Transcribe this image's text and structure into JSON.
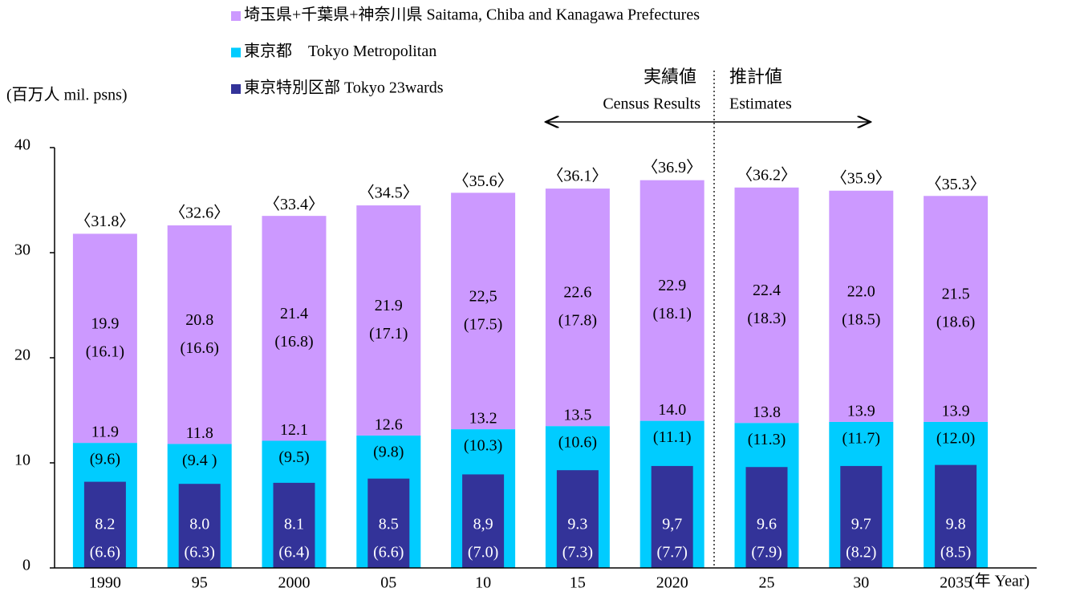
{
  "chart_data": {
    "type": "bar",
    "y_label": "(百万人 mil. psns)",
    "x_label": "(年 Year)",
    "categories": [
      "1990",
      "95",
      "2000",
      "05",
      "10",
      "15",
      "2020",
      "25",
      "30",
      "2035"
    ],
    "ylim": [
      0,
      40
    ],
    "yticks": [
      0,
      10,
      20,
      30,
      40
    ],
    "series": [
      {
        "name": "東京都　Tokyo Metropolitan",
        "color": "#00ccff",
        "stack": true,
        "values": [
          11.9,
          11.8,
          12.1,
          12.6,
          13.2,
          13.5,
          14.0,
          13.8,
          13.9,
          13.9
        ],
        "value_labels": [
          "11.9",
          "11.8",
          "12.1",
          "12.6",
          "13.2",
          "13.5",
          "14.0",
          "13.8",
          "13.9",
          "13.9"
        ],
        "sub_values": [
          9.6,
          9.4,
          9.5,
          9.8,
          10.3,
          10.6,
          11.1,
          11.3,
          11.7,
          12.0
        ],
        "sub_value_labels": [
          "(9.6)",
          "(9.4 )",
          "(9.5)",
          "(9.8)",
          "(10.3)",
          "(10.6)",
          "(11.1)",
          "(11.3)",
          "(11.7)",
          "(12.0)"
        ]
      },
      {
        "name": "埼玉県+千葉県+神奈川県 Saitama, Chiba and Kanagawa Prefectures",
        "color": "#cc99ff",
        "stack": true,
        "values": [
          19.9,
          20.8,
          21.4,
          21.9,
          22.5,
          22.6,
          22.9,
          22.4,
          22.0,
          21.5
        ],
        "value_labels": [
          "19.9",
          "20.8",
          "21.4",
          "21.9",
          "22,5",
          "22.6",
          "22.9",
          "22.4",
          "22.0",
          "21.5"
        ],
        "sub_values": [
          16.1,
          16.6,
          16.8,
          17.1,
          17.5,
          17.8,
          18.1,
          18.3,
          18.5,
          18.6
        ],
        "sub_value_labels": [
          "(16.1)",
          "(16.6)",
          "(16.8)",
          "(17.1)",
          "(17.5)",
          "(17.8)",
          "(18.1)",
          "(18.3)",
          "(18.5)",
          "(18.6)"
        ]
      },
      {
        "name": "東京特別区部 Tokyo 23wards",
        "color": "#333399",
        "stack": false,
        "values": [
          8.2,
          8.0,
          8.1,
          8.5,
          8.9,
          9.3,
          9.7,
          9.6,
          9.7,
          9.8
        ],
        "value_labels": [
          "8.2",
          "8.0",
          "8.1",
          "8.5",
          "8,9",
          "9.3",
          "9,7",
          "9.6",
          "9.7",
          "9.8"
        ],
        "sub_values": [
          6.6,
          6.3,
          6.4,
          6.6,
          7.0,
          7.3,
          7.7,
          7.9,
          8.2,
          8.5
        ],
        "sub_value_labels": [
          "(6.6)",
          "(6.3)",
          "(6.4)",
          "(6.6)",
          "(7.0)",
          "(7.3)",
          "(7.7)",
          "(7.9)",
          "(8.2)",
          "(8.5)"
        ]
      }
    ],
    "totals": [
      31.8,
      32.6,
      33.4,
      34.5,
      35.6,
      36.1,
      36.9,
      36.2,
      35.9,
      35.3
    ],
    "total_labels": [
      "〈31.8〉",
      "〈32.6〉",
      "〈33.4〉",
      "〈34.5〉",
      "〈35.6〉",
      "〈36.1〉",
      "〈36.9〉",
      "〈36.2〉",
      "〈35.9〉",
      "〈35.3〉"
    ],
    "annotations": {
      "results_ja": "実績値",
      "results_en": "Census Results",
      "estimates_ja": "推計値",
      "estimates_en": "Estimates"
    },
    "legend_order": [
      1,
      0,
      2
    ]
  }
}
